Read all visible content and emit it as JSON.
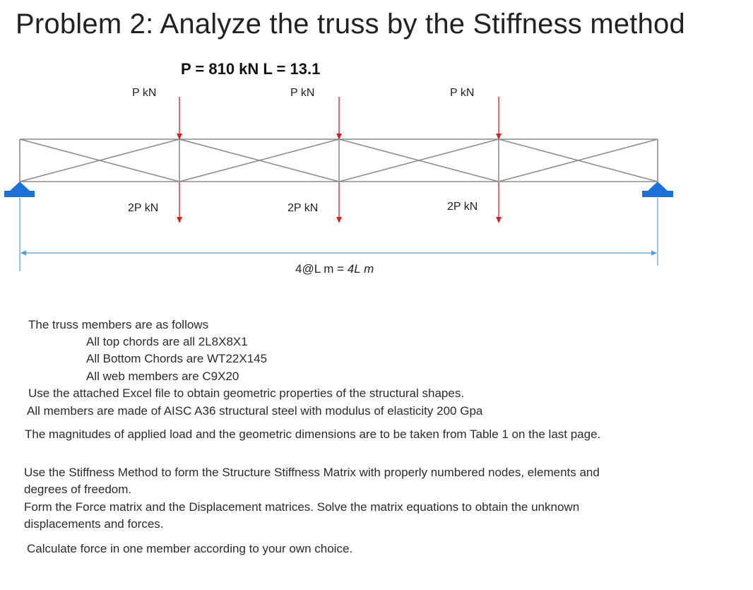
{
  "title": "Problem 2: Analyze the truss by the Stiffness method",
  "params": "P = 810 kN  L = 13.1",
  "loads": {
    "top": [
      "P kN",
      "P kN",
      "P kN"
    ],
    "bottom": [
      "2P kN",
      "2P kN",
      "2P kN"
    ]
  },
  "dimension": {
    "prefix": "4@L m = ",
    "italic": "4L m"
  },
  "colors": {
    "load_arrow": "#e0191d",
    "support": "#1e6fd6",
    "dimension_line": "#5b9bd5",
    "truss": "#8c8c8c"
  },
  "text": {
    "members_intro": "The truss members are as follows",
    "members": [
      "All top chords are all 2L8X8X1",
      "All Bottom Chords are WT22X145",
      "All web members are C9X20"
    ],
    "excel": "Use the attached Excel file to obtain geometric properties of the structural shapes.",
    "material": "All members are made of AISC A36  structural steel with modulus of elasticity 200 Gpa",
    "magnitudes": "The magnitudes of applied load and the geometric dimensions are to be taken from Table 1 on the last page.",
    "stiffness": "Use the Stiffness Method to form the Structure Stiffness Matrix with properly numbered nodes, elements and degrees of freedom.",
    "force_matrix": "Form the Force matrix and the Displacement matrices. Solve the matrix equations to obtain the unknown displacements and forces.",
    "calculate": "Calculate force in one member according to your own choice."
  }
}
